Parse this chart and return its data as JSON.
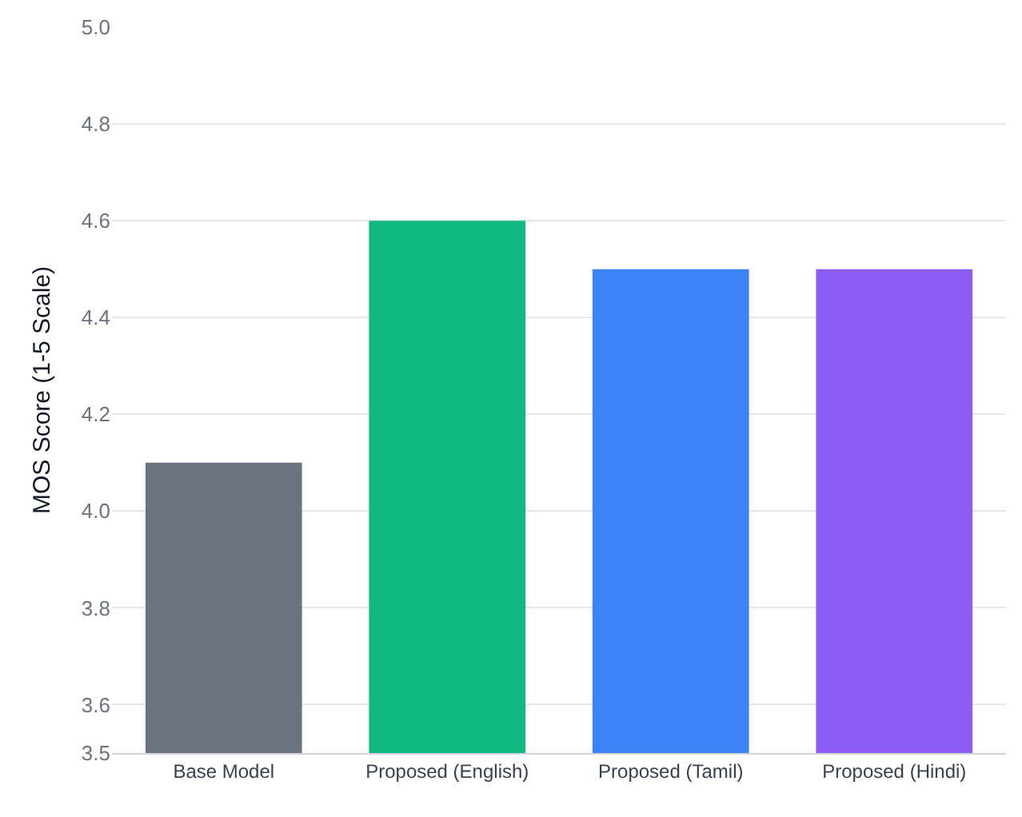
{
  "chart_data": {
    "type": "bar",
    "ylabel": "MOS Score (1-5 Scale)",
    "categories": [
      "Base Model",
      "Proposed (English)",
      "Proposed (Tamil)",
      "Proposed (Hindi)"
    ],
    "values": [
      4.1,
      4.6,
      4.5,
      4.5
    ],
    "colors": [
      "#6b7280",
      "#10b981",
      "#3b82f6",
      "#8b5cf6"
    ],
    "ylim": [
      3.5,
      5.0
    ],
    "yticks": [
      3.5,
      3.6,
      3.8,
      {
        "value": 4,
        "label": "4.0"
      },
      4.2,
      4.4,
      4.6,
      4.8,
      {
        "value": 5,
        "label": "5.0"
      }
    ],
    "grid": "y"
  }
}
